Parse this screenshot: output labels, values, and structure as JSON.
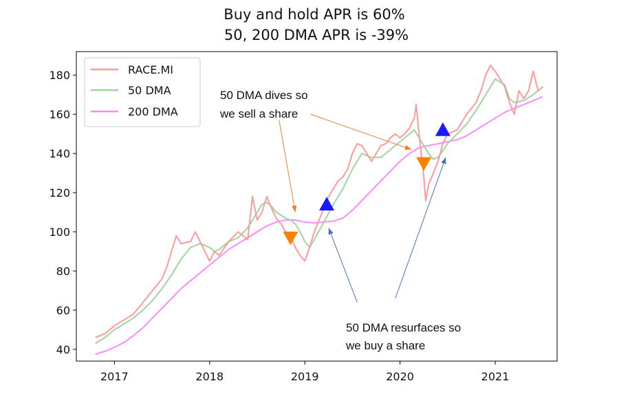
{
  "chart_data": {
    "type": "line",
    "title_line1": "Buy and hold APR is 60%",
    "title_line2": "50, 200 DMA APR is -39%",
    "xlabel": "",
    "ylabel": "",
    "xlim": [
      2016.6,
      2021.65
    ],
    "ylim": [
      34,
      192
    ],
    "x_ticks": [
      2017,
      2018,
      2019,
      2020,
      2021
    ],
    "x_tick_labels": [
      "2017",
      "2018",
      "2019",
      "2020",
      "2021"
    ],
    "y_ticks": [
      40,
      60,
      80,
      100,
      120,
      140,
      160,
      180
    ],
    "y_tick_labels": [
      "40",
      "60",
      "80",
      "100",
      "120",
      "140",
      "160",
      "180"
    ],
    "grid": false,
    "legend_position": "top-left",
    "series": [
      {
        "name": "RACE.MI",
        "color": "#ff9999",
        "points": [
          [
            2016.8,
            46
          ],
          [
            2016.9,
            48
          ],
          [
            2017.0,
            52
          ],
          [
            2017.1,
            55
          ],
          [
            2017.2,
            58
          ],
          [
            2017.3,
            64
          ],
          [
            2017.4,
            70
          ],
          [
            2017.5,
            76
          ],
          [
            2017.55,
            82
          ],
          [
            2017.6,
            90
          ],
          [
            2017.65,
            98
          ],
          [
            2017.7,
            94
          ],
          [
            2017.8,
            95
          ],
          [
            2017.85,
            100
          ],
          [
            2017.9,
            95
          ],
          [
            2017.95,
            90
          ],
          [
            2018.0,
            85
          ],
          [
            2018.05,
            90
          ],
          [
            2018.1,
            88
          ],
          [
            2018.2,
            95
          ],
          [
            2018.3,
            100
          ],
          [
            2018.4,
            96
          ],
          [
            2018.45,
            118
          ],
          [
            2018.5,
            106
          ],
          [
            2018.55,
            110
          ],
          [
            2018.6,
            118
          ],
          [
            2018.65,
            112
          ],
          [
            2018.7,
            107
          ],
          [
            2018.75,
            104
          ],
          [
            2018.8,
            100
          ],
          [
            2018.85,
            98
          ],
          [
            2018.9,
            92
          ],
          [
            2018.95,
            88
          ],
          [
            2019.0,
            85
          ],
          [
            2019.05,
            92
          ],
          [
            2019.1,
            100
          ],
          [
            2019.15,
            106
          ],
          [
            2019.2,
            112
          ],
          [
            2019.25,
            118
          ],
          [
            2019.3,
            122
          ],
          [
            2019.35,
            126
          ],
          [
            2019.4,
            128
          ],
          [
            2019.45,
            132
          ],
          [
            2019.5,
            140
          ],
          [
            2019.55,
            145
          ],
          [
            2019.6,
            144
          ],
          [
            2019.65,
            140
          ],
          [
            2019.7,
            136
          ],
          [
            2019.75,
            140
          ],
          [
            2019.8,
            144
          ],
          [
            2019.85,
            145
          ],
          [
            2019.9,
            148
          ],
          [
            2019.95,
            150
          ],
          [
            2020.0,
            148
          ],
          [
            2020.05,
            150
          ],
          [
            2020.1,
            153
          ],
          [
            2020.15,
            158
          ],
          [
            2020.17,
            165
          ],
          [
            2020.2,
            150
          ],
          [
            2020.25,
            128
          ],
          [
            2020.27,
            116
          ],
          [
            2020.3,
            124
          ],
          [
            2020.35,
            130
          ],
          [
            2020.4,
            136
          ],
          [
            2020.45,
            145
          ],
          [
            2020.5,
            150
          ],
          [
            2020.6,
            152
          ],
          [
            2020.7,
            160
          ],
          [
            2020.8,
            166
          ],
          [
            2020.85,
            172
          ],
          [
            2020.9,
            180
          ],
          [
            2020.95,
            185
          ],
          [
            2021.0,
            182
          ],
          [
            2021.05,
            178
          ],
          [
            2021.1,
            174
          ],
          [
            2021.15,
            166
          ],
          [
            2021.2,
            160
          ],
          [
            2021.25,
            172
          ],
          [
            2021.3,
            168
          ],
          [
            2021.35,
            172
          ],
          [
            2021.4,
            182
          ],
          [
            2021.45,
            172
          ],
          [
            2021.5,
            174
          ]
        ]
      },
      {
        "name": "50 DMA",
        "color": "#9fd49f",
        "points": [
          [
            2016.8,
            43
          ],
          [
            2016.9,
            46
          ],
          [
            2017.0,
            50
          ],
          [
            2017.1,
            53
          ],
          [
            2017.2,
            56
          ],
          [
            2017.3,
            60
          ],
          [
            2017.4,
            65
          ],
          [
            2017.5,
            71
          ],
          [
            2017.6,
            78
          ],
          [
            2017.7,
            86
          ],
          [
            2017.8,
            92
          ],
          [
            2017.9,
            94
          ],
          [
            2018.0,
            92
          ],
          [
            2018.05,
            90
          ],
          [
            2018.1,
            91
          ],
          [
            2018.2,
            95
          ],
          [
            2018.3,
            97
          ],
          [
            2018.4,
            102
          ],
          [
            2018.5,
            110
          ],
          [
            2018.55,
            114
          ],
          [
            2018.6,
            115
          ],
          [
            2018.65,
            113
          ],
          [
            2018.7,
            110
          ],
          [
            2018.8,
            107
          ],
          [
            2018.85,
            106
          ],
          [
            2018.9,
            104
          ],
          [
            2018.95,
            100
          ],
          [
            2019.0,
            95
          ],
          [
            2019.05,
            92
          ],
          [
            2019.1,
            96
          ],
          [
            2019.2,
            105
          ],
          [
            2019.3,
            114
          ],
          [
            2019.4,
            122
          ],
          [
            2019.5,
            132
          ],
          [
            2019.6,
            140
          ],
          [
            2019.7,
            138
          ],
          [
            2019.8,
            138
          ],
          [
            2019.9,
            142
          ],
          [
            2020.0,
            146
          ],
          [
            2020.1,
            150
          ],
          [
            2020.15,
            152
          ],
          [
            2020.2,
            148
          ],
          [
            2020.3,
            140
          ],
          [
            2020.35,
            137
          ],
          [
            2020.4,
            138
          ],
          [
            2020.5,
            145
          ],
          [
            2020.6,
            150
          ],
          [
            2020.7,
            155
          ],
          [
            2020.8,
            162
          ],
          [
            2020.9,
            170
          ],
          [
            2021.0,
            178
          ],
          [
            2021.1,
            175
          ],
          [
            2021.15,
            168
          ],
          [
            2021.2,
            166
          ],
          [
            2021.3,
            167
          ],
          [
            2021.4,
            170
          ],
          [
            2021.5,
            174
          ]
        ]
      },
      {
        "name": "200 DMA",
        "color": "#ff88ff",
        "points": [
          [
            2016.8,
            37.5
          ],
          [
            2016.9,
            39
          ],
          [
            2017.0,
            41
          ],
          [
            2017.1,
            43.5
          ],
          [
            2017.2,
            47
          ],
          [
            2017.3,
            51
          ],
          [
            2017.4,
            56
          ],
          [
            2017.5,
            61
          ],
          [
            2017.6,
            66
          ],
          [
            2017.7,
            71
          ],
          [
            2017.8,
            75
          ],
          [
            2017.9,
            79
          ],
          [
            2018.0,
            83
          ],
          [
            2018.1,
            87
          ],
          [
            2018.2,
            91
          ],
          [
            2018.3,
            94
          ],
          [
            2018.4,
            97
          ],
          [
            2018.5,
            100
          ],
          [
            2018.6,
            103
          ],
          [
            2018.7,
            105
          ],
          [
            2018.8,
            106
          ],
          [
            2018.9,
            106
          ],
          [
            2019.0,
            105
          ],
          [
            2019.1,
            104.5
          ],
          [
            2019.2,
            105
          ],
          [
            2019.3,
            105.5
          ],
          [
            2019.4,
            107
          ],
          [
            2019.5,
            111
          ],
          [
            2019.6,
            116
          ],
          [
            2019.7,
            121
          ],
          [
            2019.8,
            126
          ],
          [
            2019.9,
            131
          ],
          [
            2020.0,
            136
          ],
          [
            2020.1,
            140
          ],
          [
            2020.2,
            143
          ],
          [
            2020.3,
            144
          ],
          [
            2020.4,
            145
          ],
          [
            2020.5,
            146
          ],
          [
            2020.6,
            147
          ],
          [
            2020.7,
            149
          ],
          [
            2020.8,
            152
          ],
          [
            2020.9,
            155
          ],
          [
            2021.0,
            158
          ],
          [
            2021.1,
            161
          ],
          [
            2021.2,
            163
          ],
          [
            2021.3,
            165
          ],
          [
            2021.4,
            167
          ],
          [
            2021.5,
            169
          ]
        ]
      }
    ],
    "markers": [
      {
        "kind": "sell",
        "x": 2018.85,
        "y": 97,
        "color": "#ff8000"
      },
      {
        "kind": "buy",
        "x": 2019.23,
        "y": 114,
        "color": "#1a1aff"
      },
      {
        "kind": "sell",
        "x": 2020.25,
        "y": 135,
        "color": "#ff8000"
      },
      {
        "kind": "buy",
        "x": 2020.45,
        "y": 152,
        "color": "#1a1aff"
      }
    ],
    "annotations": [
      {
        "name": "sell",
        "lines": [
          "50 DMA dives so",
          "we sell a share"
        ],
        "color": "#ed7d31",
        "arrows": [
          {
            "from": [
              2018.73,
              157
            ],
            "to": [
              2018.9,
              110
            ]
          },
          {
            "from": [
              2019.06,
              160
            ],
            "to": [
              2020.12,
              142
            ]
          }
        ]
      },
      {
        "name": "buy",
        "lines": [
          "50 DMA resurfaces so",
          "we buy a share"
        ],
        "color": "#4472c4",
        "arrows": [
          {
            "from": [
              2019.55,
              64
            ],
            "to": [
              2019.25,
              102
            ]
          },
          {
            "from": [
              2019.95,
              66
            ],
            "to": [
              2020.48,
              138
            ]
          }
        ]
      }
    ]
  }
}
